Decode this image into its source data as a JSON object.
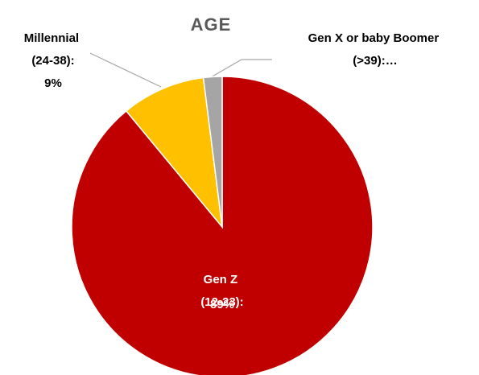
{
  "chart_data": {
    "type": "pie",
    "title": "AGE",
    "categories": [
      "Gen Z (12-23):",
      "Millennial (24-38):",
      "Gen X or baby Boomer (>39):…"
    ],
    "values": [
      89,
      9,
      2
    ],
    "value_labels": [
      "89%",
      "9%",
      null
    ],
    "colors": [
      "#c00000",
      "#ffc000",
      "#a5a5a5"
    ]
  }
}
